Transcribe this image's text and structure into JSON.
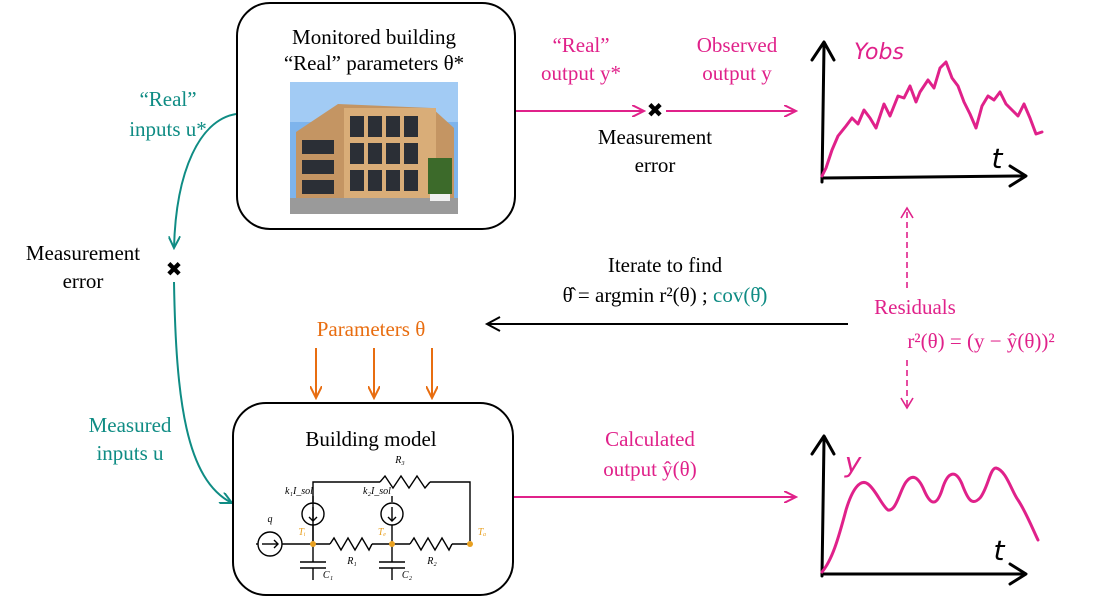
{
  "colors": {
    "teal": "#0f8c84",
    "pink": "#e0218a",
    "orange": "#e86d10",
    "circuit_node": "#e8a020"
  },
  "monitored": {
    "line1": "Monitored building",
    "line2": "“Real” parameters θ*"
  },
  "real_output": {
    "line1": "“Real”",
    "line2": "output y*"
  },
  "observed_output": {
    "line1": "Observed",
    "line2": "output y"
  },
  "measurement_error_top": {
    "line1": "Measurement",
    "line2": "error"
  },
  "real_inputs": {
    "line1": "“Real”",
    "line2": "inputs u*"
  },
  "measurement_error_left": {
    "line1": "Measurement",
    "line2": "error"
  },
  "iterate": {
    "line1": "Iterate to find",
    "line2a": "θ̂ = argmin r²(θ) ;",
    "line2b": "cov(θ̂)"
  },
  "parameters": "Parameters θ",
  "residuals": {
    "line1": "Residuals",
    "line2": "r²(θ) = (y − ŷ(θ))²"
  },
  "measured_inputs": {
    "line1": "Measured",
    "line2": "inputs u"
  },
  "building_model": {
    "title": "Building model"
  },
  "calculated_output": {
    "line1": "Calculated",
    "line2": "output ŷ(θ)"
  },
  "circuit": {
    "R3": "R₃",
    "R1": "R₁",
    "R2": "R₂",
    "C1": "C₁",
    "C2": "C₂",
    "k1": "k₁I_sol",
    "k2": "k₂I_sol",
    "q": "q",
    "Ti": "Tᵢ",
    "Te": "Tₑ",
    "Ta": "Tₐ"
  },
  "plot_top": {
    "ylabel": "Yobs",
    "xlabel": "t"
  },
  "plot_bottom": {
    "ylabel": "y",
    "xlabel": "t"
  }
}
